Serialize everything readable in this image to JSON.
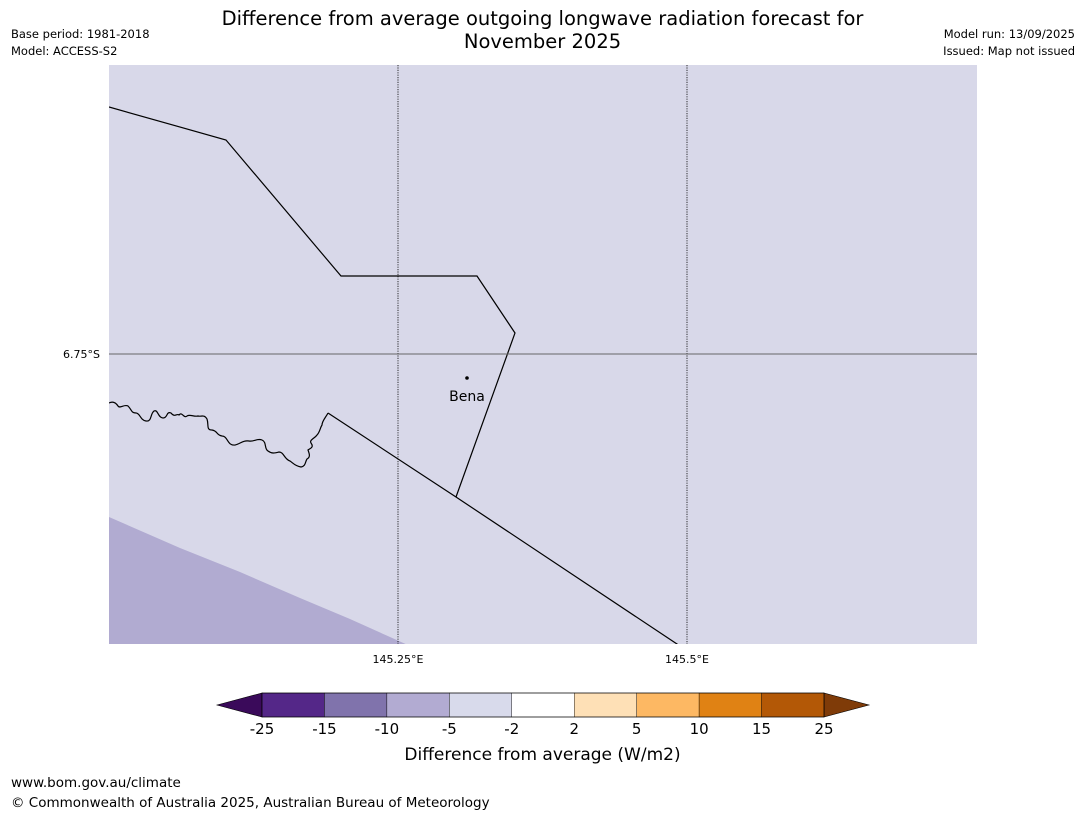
{
  "title_line1": "Difference from average outgoing longwave radiation forecast for",
  "title_line2": "November 2025",
  "meta": {
    "base_period": "Base period: 1981-2018",
    "model": "Model: ACCESS-S2",
    "model_run": "Model run: 13/09/2025",
    "issued": "Issued: Map not issued"
  },
  "map": {
    "background_color": "#d8d8e9",
    "shaded_region_color": "#b1abd1",
    "shaded_region_category": "-10 to -5",
    "lat_label": "6.75°S",
    "lon_labels": [
      "145.25°E",
      "145.5°E"
    ],
    "place": {
      "name": "Bena"
    }
  },
  "colorbar": {
    "label": "Difference from average (W/m2)",
    "ticks": [
      "-25",
      "-15",
      "-10",
      "-5",
      "-2",
      "2",
      "5",
      "10",
      "15",
      "25"
    ],
    "under_color": "#3a0a5a",
    "over_color": "#7f3b08",
    "colors": [
      "#542788",
      "#8073ac",
      "#b2abd2",
      "#d8daeb",
      "#ffffff",
      "#fee0b6",
      "#fdb863",
      "#e08214",
      "#b35806"
    ]
  },
  "footer": {
    "url": "www.bom.gov.au/climate",
    "copyright": "© Commonwealth of Australia 2025, Australian Bureau of Meteorology"
  }
}
